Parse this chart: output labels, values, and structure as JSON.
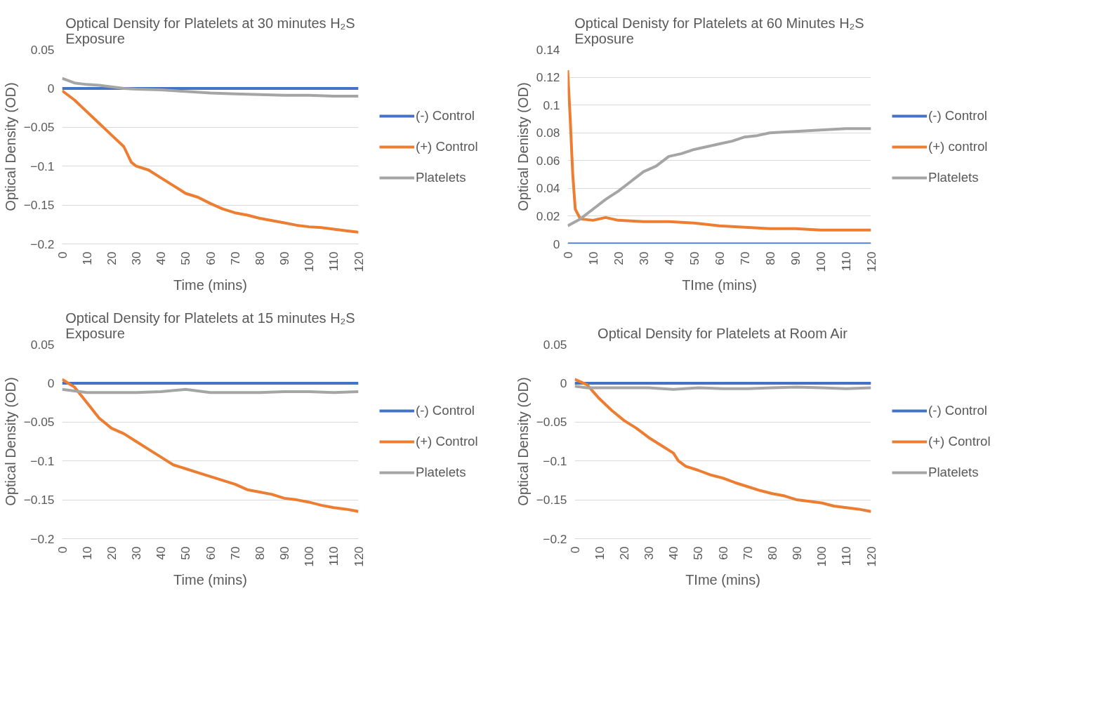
{
  "chart_data": [
    {
      "type": "line",
      "title": "Optical Density for Platelets at 30 minutes H₂S Exposure",
      "xlabel": "Time (mins)",
      "ylabel": "Optical Density (OD)",
      "xlim": [
        0,
        120
      ],
      "xticks": [
        0,
        10,
        20,
        30,
        40,
        50,
        60,
        70,
        80,
        90,
        100,
        110,
        120
      ],
      "ylim": [
        -0.2,
        0.05
      ],
      "yticks": [
        -0.2,
        -0.15,
        -0.1,
        -0.05,
        0,
        0.05
      ],
      "grid": "y",
      "legend": "right",
      "marker": "none",
      "series": [
        {
          "name": "(-) Control",
          "color": "#4472c4",
          "x": [
            0,
            120
          ],
          "values": [
            0,
            0
          ]
        },
        {
          "name": "(+) Control",
          "color": "#ed7d31",
          "x": [
            0,
            5,
            10,
            15,
            20,
            25,
            28,
            30,
            35,
            40,
            45,
            50,
            55,
            60,
            65,
            70,
            75,
            80,
            85,
            90,
            95,
            100,
            105,
            110,
            115,
            120
          ],
          "values": [
            -0.003,
            -0.015,
            -0.03,
            -0.045,
            -0.06,
            -0.075,
            -0.095,
            -0.1,
            -0.105,
            -0.115,
            -0.125,
            -0.135,
            -0.14,
            -0.148,
            -0.155,
            -0.16,
            -0.163,
            -0.167,
            -0.17,
            -0.173,
            -0.176,
            -0.178,
            -0.179,
            -0.181,
            -0.183,
            -0.185
          ]
        },
        {
          "name": "Platelets",
          "color": "#a5a5a5",
          "x": [
            0,
            5,
            10,
            15,
            20,
            25,
            30,
            40,
            50,
            60,
            70,
            80,
            90,
            100,
            110,
            120
          ],
          "values": [
            0.013,
            0.007,
            0.005,
            0.004,
            0.002,
            0.0,
            -0.001,
            -0.002,
            -0.004,
            -0.006,
            -0.007,
            -0.008,
            -0.009,
            -0.009,
            -0.01,
            -0.01
          ]
        }
      ]
    },
    {
      "type": "line",
      "title": "Optical Denisty for Platelets at 60 Minutes H₂S Exposure",
      "xlabel": "TIme (mins)",
      "ylabel": "Optical Denisty (OD)",
      "xlim": [
        0,
        120
      ],
      "xticks": [
        0,
        10,
        20,
        30,
        40,
        50,
        60,
        70,
        80,
        90,
        100,
        110,
        120
      ],
      "ylim": [
        0,
        0.14
      ],
      "yticks": [
        0,
        0.02,
        0.04,
        0.06,
        0.08,
        0.1,
        0.12,
        0.14
      ],
      "grid": "y",
      "legend": "right",
      "marker": "none",
      "series": [
        {
          "name": "(-) Control",
          "color": "#4472c4",
          "x": [
            0,
            120
          ],
          "values": [
            0,
            0
          ]
        },
        {
          "name": "(+) control",
          "color": "#ed7d31",
          "x": [
            0,
            1,
            2,
            3,
            5,
            10,
            15,
            20,
            30,
            40,
            50,
            60,
            70,
            80,
            90,
            100,
            110,
            120
          ],
          "values": [
            0.125,
            0.09,
            0.05,
            0.025,
            0.018,
            0.017,
            0.019,
            0.017,
            0.016,
            0.016,
            0.015,
            0.013,
            0.012,
            0.011,
            0.011,
            0.01,
            0.01,
            0.01
          ]
        },
        {
          "name": "Platelets",
          "color": "#a5a5a5",
          "x": [
            0,
            5,
            10,
            15,
            20,
            25,
            30,
            35,
            40,
            45,
            50,
            55,
            60,
            65,
            70,
            75,
            80,
            90,
            100,
            110,
            120
          ],
          "values": [
            0.013,
            0.018,
            0.025,
            0.032,
            0.038,
            0.045,
            0.052,
            0.056,
            0.063,
            0.065,
            0.068,
            0.07,
            0.072,
            0.074,
            0.077,
            0.078,
            0.08,
            0.081,
            0.082,
            0.083,
            0.083
          ]
        }
      ]
    },
    {
      "type": "line",
      "title": "Optical Density for Platelets at 15 minutes H₂S Exposure",
      "xlabel": "Time (mins)",
      "ylabel": "Optical Density (OD)",
      "xlim": [
        0,
        120
      ],
      "xticks": [
        0,
        10,
        20,
        30,
        40,
        50,
        60,
        70,
        80,
        90,
        100,
        110,
        120
      ],
      "ylim": [
        -0.2,
        0.05
      ],
      "yticks": [
        -0.2,
        -0.15,
        -0.1,
        -0.05,
        0,
        0.05
      ],
      "grid": "y",
      "legend": "right",
      "marker": "none",
      "series": [
        {
          "name": "(-) Control",
          "color": "#4472c4",
          "x": [
            0,
            120
          ],
          "values": [
            0,
            0
          ]
        },
        {
          "name": "(+) Control",
          "color": "#ed7d31",
          "x": [
            0,
            5,
            10,
            15,
            20,
            25,
            30,
            35,
            40,
            45,
            50,
            55,
            60,
            65,
            70,
            75,
            80,
            85,
            90,
            95,
            100,
            105,
            110,
            115,
            120
          ],
          "values": [
            0.005,
            -0.005,
            -0.025,
            -0.045,
            -0.058,
            -0.065,
            -0.075,
            -0.085,
            -0.095,
            -0.105,
            -0.11,
            -0.115,
            -0.12,
            -0.125,
            -0.13,
            -0.137,
            -0.14,
            -0.143,
            -0.148,
            -0.15,
            -0.153,
            -0.157,
            -0.16,
            -0.162,
            -0.165
          ]
        },
        {
          "name": "Platelets",
          "color": "#a5a5a5",
          "x": [
            0,
            5,
            10,
            20,
            30,
            40,
            50,
            60,
            70,
            80,
            90,
            100,
            110,
            120
          ],
          "values": [
            -0.008,
            -0.01,
            -0.012,
            -0.012,
            -0.012,
            -0.011,
            -0.008,
            -0.012,
            -0.012,
            -0.012,
            -0.011,
            -0.011,
            -0.012,
            -0.011
          ]
        }
      ]
    },
    {
      "type": "line",
      "title": "Optical Density for Platelets at Room Air",
      "xlabel": "TIme (mins)",
      "ylabel": "Optical Density (OD)",
      "xlim": [
        0,
        120
      ],
      "xticks": [
        0,
        10,
        20,
        30,
        40,
        50,
        60,
        70,
        80,
        90,
        100,
        110,
        120
      ],
      "ylim": [
        -0.2,
        0.05
      ],
      "yticks": [
        -0.2,
        -0.15,
        -0.1,
        -0.05,
        0,
        0.05
      ],
      "grid": "y",
      "legend": "right",
      "marker": "none",
      "series": [
        {
          "name": "(-) Control",
          "color": "#4472c4",
          "x": [
            0,
            120
          ],
          "values": [
            0,
            0
          ]
        },
        {
          "name": "(+) Control",
          "color": "#ed7d31",
          "x": [
            0,
            5,
            10,
            15,
            20,
            25,
            30,
            35,
            40,
            42,
            45,
            50,
            55,
            60,
            65,
            70,
            75,
            80,
            85,
            90,
            95,
            100,
            105,
            110,
            115,
            120
          ],
          "values": [
            0.005,
            -0.002,
            -0.02,
            -0.035,
            -0.048,
            -0.058,
            -0.07,
            -0.08,
            -0.09,
            -0.1,
            -0.107,
            -0.112,
            -0.118,
            -0.122,
            -0.128,
            -0.133,
            -0.138,
            -0.142,
            -0.145,
            -0.15,
            -0.152,
            -0.154,
            -0.158,
            -0.16,
            -0.162,
            -0.165
          ]
        },
        {
          "name": "Platelets",
          "color": "#a5a5a5",
          "x": [
            0,
            5,
            10,
            20,
            30,
            40,
            50,
            60,
            70,
            80,
            90,
            100,
            110,
            120
          ],
          "values": [
            -0.004,
            -0.006,
            -0.006,
            -0.006,
            -0.006,
            -0.008,
            -0.006,
            -0.007,
            -0.007,
            -0.006,
            -0.005,
            -0.006,
            -0.007,
            -0.006
          ]
        }
      ]
    }
  ]
}
